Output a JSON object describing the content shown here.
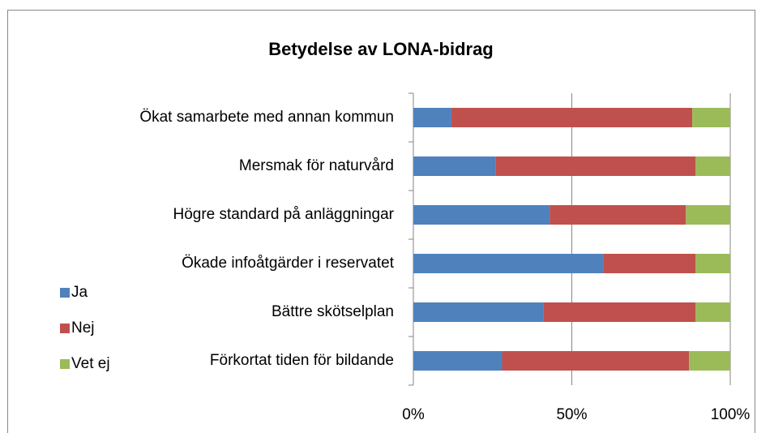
{
  "chart_data": {
    "type": "stacked_bar_horizontal",
    "title": "Betydelse av LONA-bidrag",
    "categories": [
      "Ökat samarbete med annan kommun",
      "Mersmak för naturvård",
      "Högre standard på anläggningar",
      "Ökade infoåtgärder i reservatet",
      "Bättre skötselplan",
      "Förkortat tiden för bildande"
    ],
    "series": [
      {
        "name": "Ja",
        "color": "#4f81bd",
        "values": [
          12,
          26,
          43,
          60,
          41,
          28
        ]
      },
      {
        "name": "Nej",
        "color": "#c0504d",
        "values": [
          76,
          63,
          43,
          29,
          48,
          59
        ]
      },
      {
        "name": "Vet ej",
        "color": "#9bbb59",
        "values": [
          12,
          11,
          14,
          11,
          11,
          13
        ]
      }
    ],
    "xlim": [
      0,
      100
    ],
    "xticks": [
      {
        "value": 0,
        "label": "0%"
      },
      {
        "value": 50,
        "label": "50%"
      },
      {
        "value": 100,
        "label": "100%"
      }
    ],
    "grid": true,
    "legend": "left"
  }
}
